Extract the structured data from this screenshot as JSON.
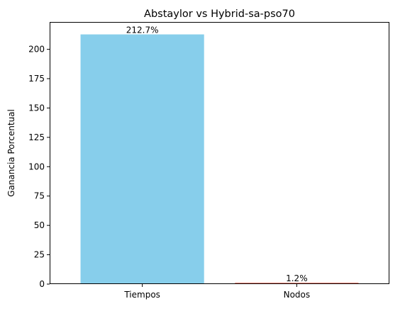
{
  "chart_data": {
    "type": "bar",
    "title": "Abstaylor vs Hybrid-sa-pso70",
    "xlabel": "",
    "ylabel": "Ganancia Porcentual",
    "categories": [
      "Tiempos",
      "Nodos"
    ],
    "values": [
      212.7,
      1.2
    ],
    "value_labels": [
      "212.7%",
      "1.2%"
    ],
    "colors": [
      "#87CEEB",
      "#FA8072"
    ],
    "ylim": [
      0,
      223.3
    ],
    "yticks": [
      0,
      25,
      50,
      75,
      100,
      125,
      150,
      175,
      200
    ],
    "grid": false,
    "legend": "none"
  }
}
